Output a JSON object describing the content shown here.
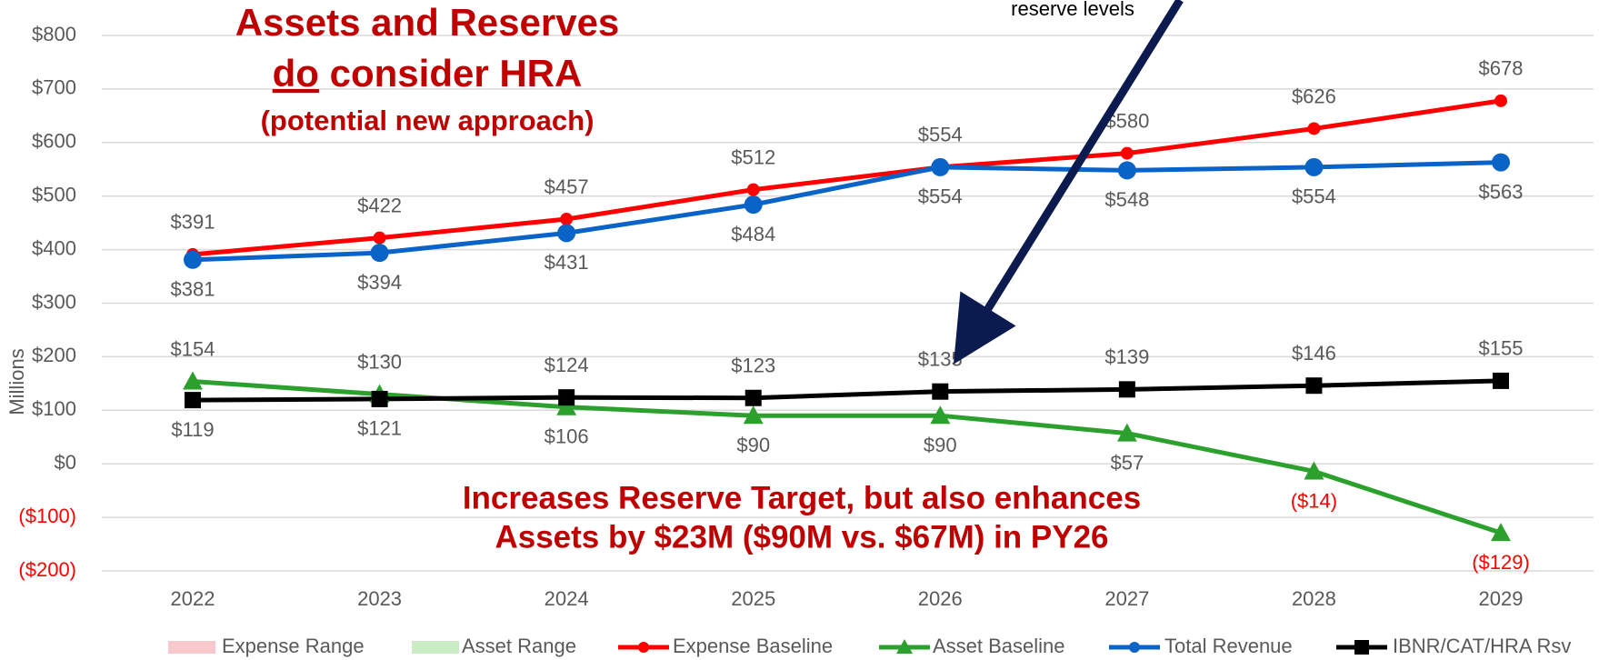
{
  "chart_data": {
    "type": "line",
    "title": [
      "Assets and Reserves",
      "do",
      " consider HRA",
      "(potential new approach)"
    ],
    "annotations": [
      "reserve levels",
      "Increases Reserve Target, but also enhances",
      "Assets by $23M ($90M vs. $67M) in PY26"
    ],
    "ylabel": "Millions",
    "categories": [
      "2022",
      "2023",
      "2024",
      "2025",
      "2026",
      "2027",
      "2028",
      "2029"
    ],
    "ylim": [
      -200,
      800
    ],
    "yticks": [
      {
        "value": -200,
        "label": "($200)"
      },
      {
        "value": -100,
        "label": "($100)"
      },
      {
        "value": 0,
        "label": "$0"
      },
      {
        "value": 100,
        "label": "$100"
      },
      {
        "value": 200,
        "label": "$200"
      },
      {
        "value": 300,
        "label": "$300"
      },
      {
        "value": 400,
        "label": "$400"
      },
      {
        "value": 500,
        "label": "$500"
      },
      {
        "value": 600,
        "label": "$600"
      },
      {
        "value": 700,
        "label": "$700"
      },
      {
        "value": 800,
        "label": "$800"
      }
    ],
    "grid": true,
    "legend_items": [
      {
        "name": "Expense Range",
        "color": "#f8c9cc"
      },
      {
        "name": "Asset Range",
        "color": "#c9ecc4"
      }
    ],
    "series": [
      {
        "name": "Expense Baseline",
        "color": "#ff0000",
        "marker": "circle",
        "values": [
          391,
          422,
          457,
          512,
          554,
          580,
          626,
          678
        ],
        "value_labels": [
          "$391",
          "$422",
          "$457",
          "$512",
          "$554",
          "$580",
          "$626",
          "$678"
        ]
      },
      {
        "name": "Asset Baseline",
        "color": "#2ca02c",
        "marker": "triangle",
        "values": [
          154,
          130,
          106,
          90,
          90,
          57,
          -14,
          -129
        ],
        "value_labels": [
          "$154",
          "$130",
          "$106",
          "$90",
          "$90",
          "$57",
          "($14)",
          "($129)"
        ]
      },
      {
        "name": "Total Revenue",
        "color": "#0a64c8",
        "marker": "bigcircle",
        "values": [
          381,
          394,
          431,
          484,
          554,
          548,
          554,
          563
        ],
        "value_labels": [
          "$381",
          "$394",
          "$431",
          "$484",
          "$554",
          "$548",
          "$554",
          "$563"
        ]
      },
      {
        "name": "IBNR/CAT/HRA Rsv",
        "color": "#000000",
        "marker": "square",
        "values": [
          119,
          121,
          124,
          123,
          135,
          139,
          146,
          155
        ],
        "value_labels": [
          "$119",
          "$121",
          "$124",
          "$123",
          "$135",
          "$139",
          "$146",
          "$155"
        ]
      }
    ]
  }
}
